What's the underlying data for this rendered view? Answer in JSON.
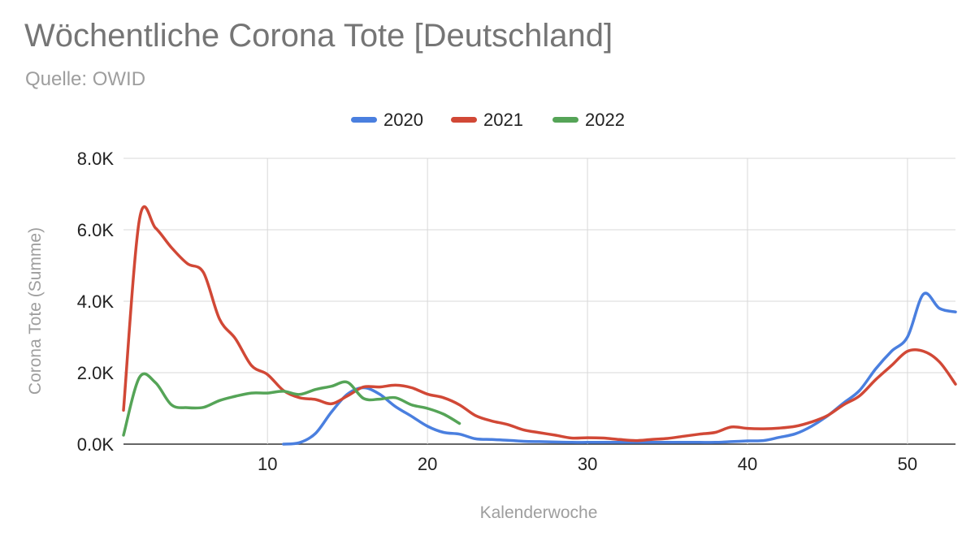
{
  "title": "Wöchentliche Corona Tote [Deutschland]",
  "subtitle": "Quelle: OWID",
  "chart_data": {
    "type": "line",
    "title": "Wöchentliche Corona Tote [Deutschland]",
    "subtitle": "Quelle: OWID",
    "xlabel": "Kalenderwoche",
    "ylabel": "Corona Tote (Summe)",
    "xlim": [
      1,
      53
    ],
    "ylim": [
      0,
      8000
    ],
    "xticks": [
      10,
      20,
      30,
      40,
      50
    ],
    "yticks": [
      0,
      2000,
      4000,
      6000,
      8000
    ],
    "ytick_labels": [
      "0.0K",
      "2.0K",
      "4.0K",
      "6.0K",
      "8.0K"
    ],
    "grid": true,
    "legend_position": "top",
    "series": [
      {
        "name": "2020",
        "color": "#4a7fdf",
        "x": [
          11,
          12,
          13,
          14,
          15,
          16,
          17,
          18,
          19,
          20,
          21,
          22,
          23,
          24,
          25,
          26,
          27,
          28,
          29,
          30,
          31,
          32,
          33,
          34,
          35,
          36,
          37,
          38,
          39,
          40,
          41,
          42,
          43,
          44,
          45,
          46,
          47,
          48,
          49,
          50,
          51,
          52,
          53
        ],
        "values": [
          0,
          40,
          300,
          900,
          1400,
          1580,
          1400,
          1050,
          780,
          500,
          330,
          280,
          150,
          130,
          110,
          80,
          70,
          60,
          50,
          50,
          50,
          50,
          50,
          50,
          50,
          50,
          50,
          50,
          70,
          90,
          100,
          190,
          290,
          500,
          790,
          1150,
          1500,
          2100,
          2600,
          3000,
          4200,
          3800,
          3700
        ]
      },
      {
        "name": "2021",
        "color": "#d14836",
        "x": [
          1,
          2,
          3,
          4,
          5,
          6,
          7,
          8,
          9,
          10,
          11,
          12,
          13,
          14,
          15,
          16,
          17,
          18,
          19,
          20,
          21,
          22,
          23,
          24,
          25,
          26,
          27,
          28,
          29,
          30,
          31,
          32,
          33,
          34,
          35,
          36,
          37,
          38,
          39,
          40,
          41,
          42,
          43,
          44,
          45,
          46,
          47,
          48,
          49,
          50,
          51,
          52,
          53
        ],
        "values": [
          950,
          6300,
          6050,
          5500,
          5050,
          4800,
          3500,
          2950,
          2200,
          1950,
          1500,
          1300,
          1250,
          1130,
          1350,
          1600,
          1600,
          1650,
          1580,
          1400,
          1300,
          1100,
          800,
          650,
          550,
          400,
          320,
          250,
          170,
          180,
          170,
          130,
          100,
          130,
          160,
          220,
          280,
          330,
          480,
          440,
          430,
          450,
          500,
          620,
          800,
          1100,
          1350,
          1800,
          2200,
          2600,
          2600,
          2300,
          1680
        ]
      },
      {
        "name": "2022",
        "color": "#55a457",
        "x": [
          1,
          2,
          3,
          4,
          5,
          6,
          7,
          8,
          9,
          10,
          11,
          12,
          13,
          14,
          15,
          16,
          17,
          18,
          19,
          20,
          21,
          22
        ],
        "values": [
          250,
          1870,
          1720,
          1100,
          1020,
          1030,
          1220,
          1340,
          1430,
          1430,
          1480,
          1390,
          1530,
          1620,
          1730,
          1280,
          1260,
          1300,
          1100,
          1000,
          840,
          580
        ]
      }
    ]
  }
}
